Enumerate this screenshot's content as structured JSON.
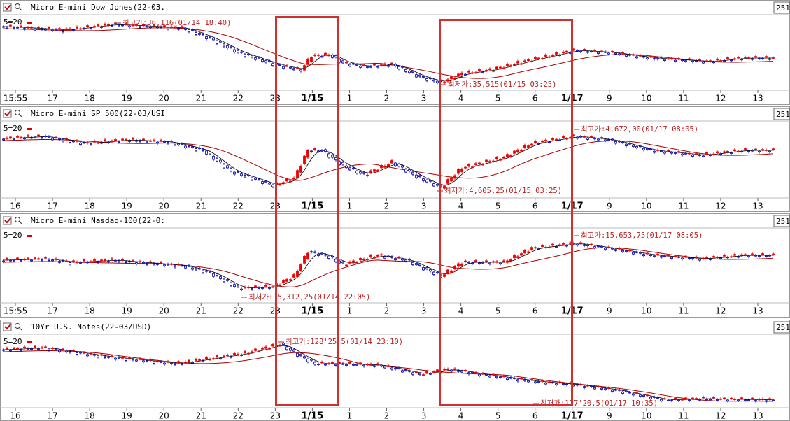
{
  "panels": [
    {
      "title": "Micro E-mini Dow Jones(22-03.",
      "count": "251",
      "legend": "5=20",
      "x_labels": [
        "15:55",
        "17",
        "18",
        "19",
        "20",
        "21",
        "22",
        "23",
        "1/15",
        "1",
        "2",
        "3",
        "4",
        "5",
        "6",
        "1/17",
        "9",
        "10",
        "11",
        "12",
        "13"
      ],
      "high_label": "최고가:36,116(01/14 18:40)",
      "low_label": "최저가:35,515(01/15 03:25)"
    },
    {
      "title": "Micro E-mini SP 500(22-03/USI",
      "count": "251",
      "legend": "5=20",
      "x_labels": [
        "16",
        "17",
        "18",
        "19",
        "20",
        "21",
        "22",
        "23",
        "1/15",
        "1",
        "2",
        "3",
        "4",
        "5",
        "6",
        "1/17",
        "9",
        "10",
        "11",
        "12",
        "13"
      ],
      "high_label": "최고가:4,672,00(01/17 08:05)",
      "low_label": "최저가:4,605,25(01/15 03:25)"
    },
    {
      "title": "Micro E-mini Nasdaq-100(22-0:",
      "count": "251",
      "legend": "5=20",
      "x_labels": [
        "15:55",
        "17",
        "18",
        "19",
        "20",
        "21",
        "22",
        "23",
        "1/15",
        "1",
        "2",
        "3",
        "4",
        "5",
        "6",
        "1/17",
        "9",
        "10",
        "11",
        "12",
        "13"
      ],
      "high_label": "최고가:15,653,75(01/17 08:05)",
      "low_label": "최저가:15,312,25(01/14 22:05)"
    },
    {
      "title": "10Yr U.S. Notes(22-03/USD)",
      "count": "251",
      "legend": "5=20",
      "x_labels": [
        "16",
        "17",
        "18",
        "19",
        "20",
        "21",
        "22",
        "23",
        "1/15",
        "1",
        "2",
        "3",
        "4",
        "5",
        "6",
        "1/17",
        "9",
        "10",
        "11",
        "12",
        "13"
      ],
      "high_label": "최고가:128'25,5(01/14 23:10)",
      "low_label": "최저가:127'20,5(01/17 10:35)"
    }
  ]
}
